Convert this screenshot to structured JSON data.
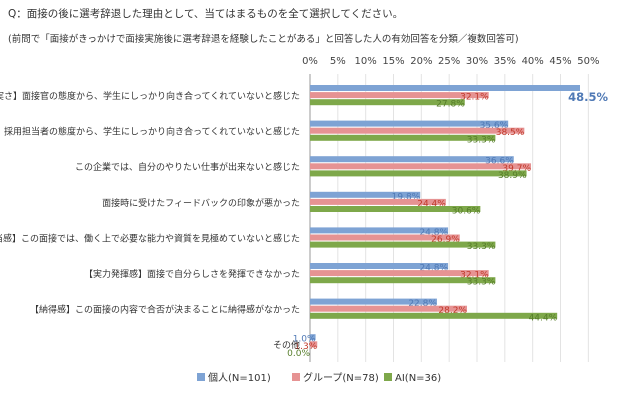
{
  "question": "Q：面接の後に選考辞退した理由として、当てはまるものを全て選択してください。",
  "note": "(前問で「面接がきっかけで面接実施後に選考辞退を経験したことがある」と回答した人の有効回答を分類／複数回答可)",
  "chart_data": {
    "type": "bar",
    "orientation": "horizontal",
    "categories": [
      "【誠実さ】面接官の態度から、学生にしっかり向き合ってくれていないと感じた",
      "【誠実さ】採用担当者の態度から、学生にしっかり向き合ってくれていないと感じた",
      "この企業では、自分のやりたい仕事が出来ないと感じた",
      "面接時に受けたフィードバックの印象が悪かった",
      "【妥当感】この面接では、働く上で必要な能力や資質を見極めていないと感じた",
      "【実力発揮感】面接で自分らしさを発揮できなかった",
      "【納得感】この面接の内容で合否が決まることに納得感がなかった",
      "その他"
    ],
    "series": [
      {
        "name": "個人(N=101)",
        "color": "#7ea3d4",
        "label_color": "#4f79b5",
        "values": [
          48.5,
          35.6,
          36.6,
          19.8,
          24.8,
          24.8,
          22.8,
          1.0
        ],
        "labels": [
          "48.5%",
          "35.6%",
          "36.6%",
          "19.8%",
          "24.8%",
          "24.8%",
          "22.8%",
          "1.0%"
        ]
      },
      {
        "name": "グループ(N=78)",
        "color": "#e69393",
        "label_color": "#c0392b",
        "values": [
          32.1,
          38.5,
          39.7,
          24.4,
          26.9,
          32.1,
          28.2,
          1.3
        ],
        "labels": [
          "32.1%",
          "38.5%",
          "39.7%",
          "24.4%",
          "26.9%",
          "32.1%",
          "28.2%",
          "1.3%"
        ]
      },
      {
        "name": "AI(N=36)",
        "color": "#7ea84a",
        "label_color": "#567d2a",
        "values": [
          27.8,
          33.3,
          38.9,
          30.6,
          33.3,
          33.3,
          44.4,
          0.0
        ],
        "labels": [
          "27.8%",
          "33.3%",
          "38.9%",
          "30.6%",
          "33.3%",
          "33.3%",
          "44.4%",
          "0.0%"
        ]
      }
    ],
    "ticks": [
      "0%",
      "5%",
      "10%",
      "15%",
      "20%",
      "25%",
      "30%",
      "35%",
      "40%",
      "45%",
      "50%"
    ],
    "xlim": [
      0,
      50
    ],
    "grid": true,
    "legend_position": "bottom",
    "highlight": {
      "series": 0,
      "category": 0
    }
  }
}
